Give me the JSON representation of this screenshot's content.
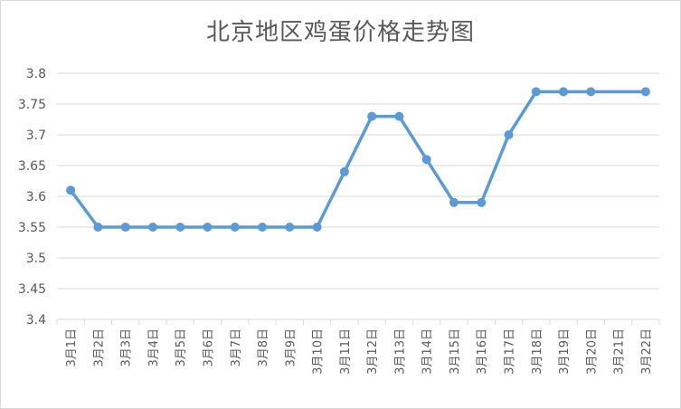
{
  "chart_data": {
    "type": "line",
    "title": "北京地区鸡蛋价格走势图",
    "categories": [
      "3月1日",
      "3月2日",
      "3月3日",
      "3月4日",
      "3月5日",
      "3月6日",
      "3月7日",
      "3月8日",
      "3月9日",
      "3月10日",
      "3月11日",
      "3月12日",
      "3月13日",
      "3月14日",
      "3月15日",
      "3月16日",
      "3月17日",
      "3月18日",
      "3月19日",
      "3月20日",
      "3月21日",
      "3月22日"
    ],
    "values": [
      3.61,
      3.55,
      3.55,
      3.55,
      3.55,
      3.55,
      3.55,
      3.55,
      3.55,
      3.55,
      3.64,
      3.73,
      3.73,
      3.66,
      3.59,
      3.59,
      3.7,
      3.77,
      3.77,
      3.77,
      null,
      3.77
    ],
    "yticks": [
      "3.4",
      "3.45",
      "3.5",
      "3.55",
      "3.6",
      "3.65",
      "3.7",
      "3.75",
      "3.8"
    ],
    "ylim": [
      3.4,
      3.8
    ],
    "grid": true,
    "line_color": "#5b9bd5",
    "grid_color": "#d9d9d9"
  }
}
